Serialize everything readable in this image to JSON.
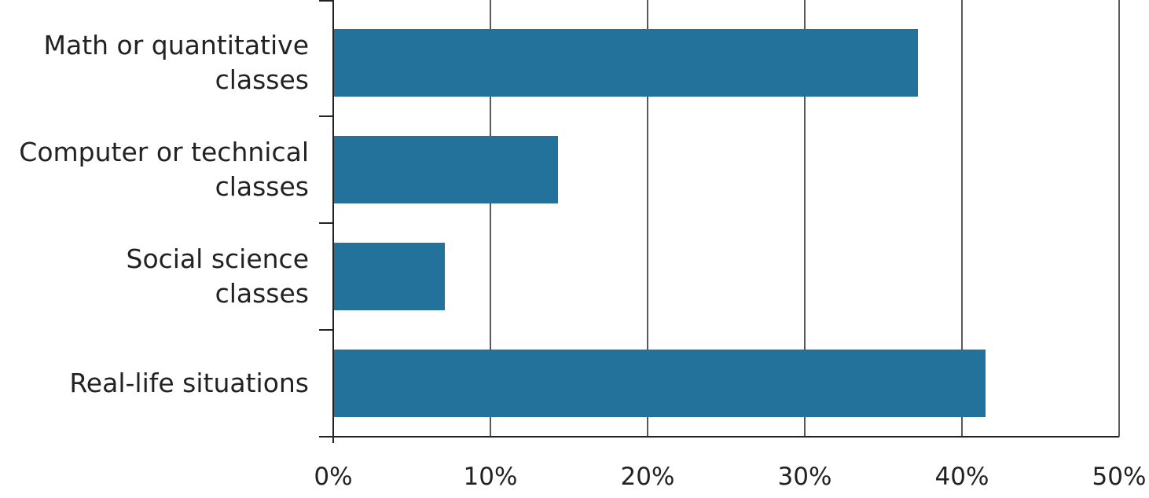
{
  "chart_data": {
    "type": "bar",
    "orientation": "horizontal",
    "title": "",
    "xlabel": "",
    "ylabel": "",
    "categories": [
      [
        "Math or quantitative",
        "classes"
      ],
      [
        "Computer or technical",
        "classes"
      ],
      [
        "Social science",
        "classes"
      ],
      [
        "Real-life situations"
      ]
    ],
    "values": [
      37.2,
      14.3,
      7.1,
      41.5
    ],
    "unit": "%",
    "xlim": [
      0,
      50
    ],
    "xticks": [
      0,
      10,
      20,
      30,
      40,
      50
    ],
    "xtick_labels": [
      "0%",
      "10%",
      "20%",
      "30%",
      "40%",
      "50%"
    ],
    "grid": "vertical",
    "bar_color": "#23729c",
    "legend": "none"
  }
}
